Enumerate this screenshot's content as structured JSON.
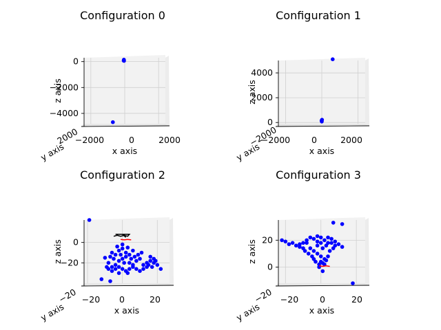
{
  "chart_data": [
    {
      "type": "scatter",
      "title": "Configuration 0",
      "xlabel": "x axis",
      "ylabel": "y axis",
      "zlabel": "z axis",
      "xlim": [
        -2400,
        2400
      ],
      "zlim": [
        -4800,
        300
      ],
      "xticks": [
        "−2000",
        "0",
        "2000"
      ],
      "zticks": [
        "0",
        "−2000",
        "−4000"
      ],
      "zticks_values": [
        0,
        -2000,
        -4000
      ],
      "yticks": [
        "2000"
      ],
      "grid": true,
      "series": [
        {
          "color": "#0000ff",
          "points": [
            [
              -50,
              150
            ],
            [
              -60,
              80
            ],
            [
              -40,
              60
            ],
            [
              -700,
              -4680
            ]
          ]
        }
      ]
    },
    {
      "type": "scatter",
      "title": "Configuration 1",
      "xlabel": "x axis",
      "ylabel": "y axis",
      "zlabel": "z axis",
      "xlim": [
        -2400,
        2400
      ],
      "zlim": [
        -100,
        5000
      ],
      "xticks": [
        "−2000",
        "0",
        "2000"
      ],
      "zticks": [
        "4000",
        "2000",
        "0"
      ],
      "zticks_values": [
        4000,
        2000,
        0
      ],
      "yticks": [
        "−2000"
      ],
      "grid": true,
      "series": [
        {
          "color": "#0000ff",
          "points": [
            [
              0,
              80
            ],
            [
              -10,
              150
            ],
            [
              10,
              220
            ],
            [
              600,
              5100
            ]
          ]
        }
      ]
    },
    {
      "type": "scatter",
      "title": "Configuration 2",
      "xlabel": "x axis",
      "ylabel": "y axis",
      "zlabel": "z axis",
      "xlim": [
        -22,
        27
      ],
      "zlim": [
        -40,
        22
      ],
      "xticks": [
        "−20",
        "0",
        "20"
      ],
      "zticks": [
        "0",
        "−20"
      ],
      "zticks_values": [
        0,
        -20
      ],
      "yticks": [
        "−20"
      ],
      "grid": true,
      "series": [
        {
          "color": "#0000ff",
          "points": [
            [
              -19,
              22
            ],
            [
              -12,
              -36
            ],
            [
              -7,
              -38
            ],
            [
              -10,
              -15
            ],
            [
              -8,
              -20
            ],
            [
              -6,
              -24
            ],
            [
              -4,
              -22
            ],
            [
              -2,
              -18
            ],
            [
              0,
              -16
            ],
            [
              2,
              -14
            ],
            [
              4,
              -20
            ],
            [
              6,
              -22
            ],
            [
              8,
              -18
            ],
            [
              10,
              -16
            ],
            [
              12,
              -22
            ],
            [
              14,
              -24
            ],
            [
              16,
              -18
            ],
            [
              18,
              -20
            ],
            [
              20,
              -22
            ],
            [
              22,
              -26
            ],
            [
              -6,
              -10
            ],
            [
              -4,
              -12
            ],
            [
              -2,
              -8
            ],
            [
              0,
              -6
            ],
            [
              2,
              -10
            ],
            [
              4,
              -12
            ],
            [
              6,
              -8
            ],
            [
              -8,
              -26
            ],
            [
              -6,
              -28
            ],
            [
              -4,
              -26
            ],
            [
              -2,
              -24
            ],
            [
              0,
              -26
            ],
            [
              2,
              -28
            ],
            [
              4,
              -26
            ],
            [
              6,
              -24
            ],
            [
              8,
              -26
            ],
            [
              10,
              -28
            ],
            [
              12,
              -26
            ],
            [
              14,
              -20
            ],
            [
              16,
              -14
            ],
            [
              18,
              -16
            ],
            [
              -3,
              -4
            ],
            [
              0,
              -2
            ],
            [
              3,
              -5
            ],
            [
              -5,
              -16
            ],
            [
              5,
              -16
            ],
            [
              1,
              -20
            ],
            [
              -1,
              -12
            ],
            [
              9,
              -12
            ],
            [
              11,
              -10
            ],
            [
              -9,
              -24
            ],
            [
              7,
              -14
            ],
            [
              -7,
              -14
            ],
            [
              15,
              -22
            ],
            [
              17,
              -24
            ],
            [
              19,
              -18
            ],
            [
              -2,
              -30
            ],
            [
              3,
              -30
            ]
          ]
        },
        {
          "color": "#000000",
          "points": [
            [
              -5,
              6
            ],
            [
              -3,
              7
            ],
            [
              -1,
              6
            ],
            [
              1,
              7
            ],
            [
              3,
              6
            ],
            [
              4,
              8
            ],
            [
              -4,
              8
            ],
            [
              0,
              8
            ],
            [
              2,
              5
            ]
          ]
        },
        {
          "color": "#ff0000",
          "points": [
            [
              -1,
              3
            ],
            [
              1,
              2.5
            ],
            [
              3,
              3
            ],
            [
              5,
              2.5
            ]
          ]
        }
      ]
    },
    {
      "type": "scatter",
      "title": "Configuration 3",
      "xlabel": "x axis",
      "ylabel": "y axis",
      "zlabel": "z axis",
      "xlim": [
        -24,
        25
      ],
      "zlim": [
        -12,
        35
      ],
      "xticks": [
        "−20",
        "0",
        "20"
      ],
      "zticks": [
        "20",
        "0"
      ],
      "zticks_values": [
        20,
        0
      ],
      "yticks": [
        "−20"
      ],
      "grid": true,
      "series": [
        {
          "color": "#0000ff",
          "points": [
            [
              7,
              33
            ],
            [
              12,
              32
            ],
            [
              -22,
              20
            ],
            [
              -20,
              19
            ],
            [
              -18,
              17
            ],
            [
              -16,
              18
            ],
            [
              -14,
              16
            ],
            [
              -12,
              15
            ],
            [
              -10,
              18
            ],
            [
              -8,
              20
            ],
            [
              -6,
              22
            ],
            [
              -4,
              21
            ],
            [
              -2,
              19
            ],
            [
              0,
              18
            ],
            [
              2,
              20
            ],
            [
              4,
              22
            ],
            [
              6,
              21
            ],
            [
              8,
              19
            ],
            [
              10,
              17
            ],
            [
              12,
              15
            ],
            [
              -6,
              14
            ],
            [
              -4,
              12
            ],
            [
              -2,
              10
            ],
            [
              0,
              8
            ],
            [
              2,
              6
            ],
            [
              4,
              8
            ],
            [
              -3,
              4
            ],
            [
              -1,
              2
            ],
            [
              1,
              3
            ],
            [
              3,
              5
            ],
            [
              -5,
              8
            ],
            [
              -7,
              10
            ],
            [
              -9,
              12
            ],
            [
              5,
              12
            ],
            [
              7,
              14
            ],
            [
              -2,
              16
            ],
            [
              1,
              14
            ],
            [
              3,
              16
            ],
            [
              -4,
              6
            ],
            [
              0,
              4
            ],
            [
              2,
              2
            ],
            [
              -1,
              0
            ],
            [
              1,
              -3
            ],
            [
              18,
              -12
            ],
            [
              -10,
              14
            ],
            [
              -12,
              17
            ],
            [
              6,
              18
            ],
            [
              8,
              16
            ],
            [
              -8,
              18
            ],
            [
              0,
              22
            ],
            [
              -2,
              23
            ],
            [
              4,
              18
            ]
          ]
        },
        {
          "color": "#ff0000",
          "points": [
            [
              -1,
              1
            ],
            [
              1,
              0.5
            ],
            [
              3,
              1
            ],
            [
              5,
              0.5
            ]
          ]
        }
      ]
    }
  ]
}
